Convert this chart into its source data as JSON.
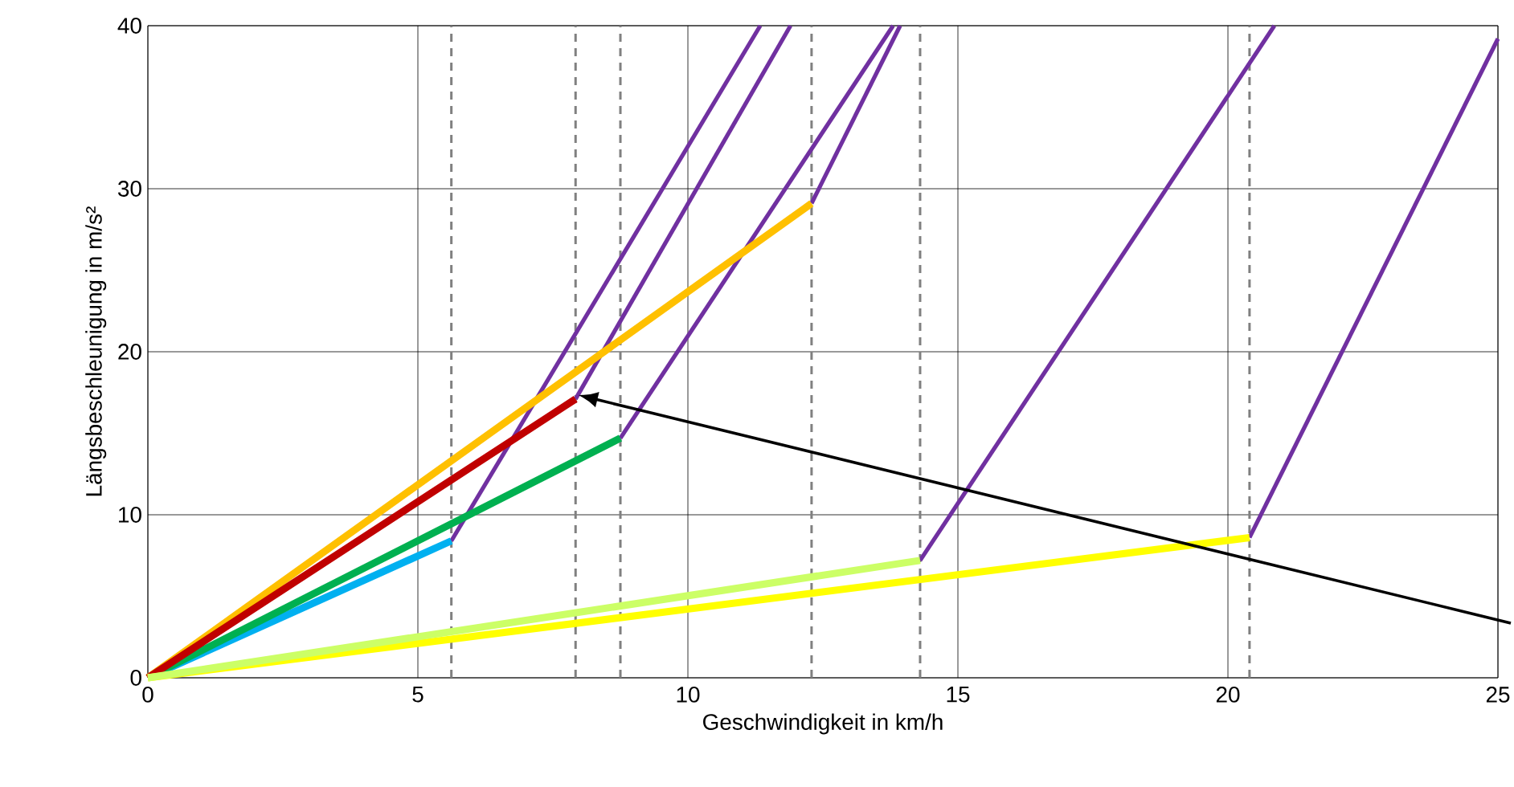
{
  "chart_data": {
    "type": "line",
    "xlabel": "Geschwindigkeit in km/h",
    "ylabel": "Längsbeschleunigung in m/s²",
    "xlim": [
      0,
      25
    ],
    "ylim": [
      0,
      40
    ],
    "xticks": [
      0,
      5,
      10,
      15,
      20,
      25
    ],
    "yticks": [
      0,
      10,
      20,
      30,
      40
    ],
    "grid": true,
    "marker": "none",
    "line_style": "solid",
    "series": [
      {
        "color": "#7030a0",
        "x": [
          5.62,
          11.34
        ],
        "values": [
          8.4,
          40
        ]
      },
      {
        "color": "#7030a0",
        "x": [
          7.92,
          11.9
        ],
        "values": [
          17.1,
          40
        ]
      },
      {
        "color": "#7030a0",
        "x": [
          8.75,
          13.8
        ],
        "values": [
          14.7,
          40
        ]
      },
      {
        "color": "#7030a0",
        "x": [
          12.29,
          13.93
        ],
        "values": [
          29.1,
          40
        ]
      },
      {
        "color": "#7030a0",
        "x": [
          14.3,
          20.86
        ],
        "values": [
          7.2,
          40
        ]
      },
      {
        "color": "#7030a0",
        "x": [
          20.4,
          25
        ],
        "values": [
          8.6,
          39.2
        ]
      },
      {
        "color": "#00b0f0",
        "x": [
          0,
          5.62
        ],
        "values": [
          0,
          8.4
        ]
      },
      {
        "color": "#00b050",
        "x": [
          0,
          8.75
        ],
        "values": [
          0,
          14.7
        ]
      },
      {
        "color": "#ffc000",
        "x": [
          0,
          12.29
        ],
        "values": [
          0,
          29.1
        ]
      },
      {
        "color": "#c00000",
        "x": [
          0,
          7.92
        ],
        "values": [
          0,
          17.1
        ]
      },
      {
        "color": "#ffff00",
        "x": [
          0,
          20.4
        ],
        "values": [
          0,
          8.6
        ]
      },
      {
        "color": "#ccff66",
        "x": [
          0,
          14.3
        ],
        "values": [
          0,
          7.2
        ]
      }
    ],
    "ref_lines": [
      {
        "axis": "x",
        "value": 5.62,
        "color": "#808080",
        "line_style": "dashed"
      },
      {
        "axis": "x",
        "value": 7.92,
        "color": "#808080",
        "line_style": "dashed"
      },
      {
        "axis": "x",
        "value": 8.75,
        "color": "#808080",
        "line_style": "dashed"
      },
      {
        "axis": "x",
        "value": 12.29,
        "color": "#808080",
        "line_style": "dashed"
      },
      {
        "axis": "x",
        "value": 14.3,
        "color": "#808080",
        "line_style": "dashed"
      },
      {
        "axis": "x",
        "value": 20.4,
        "color": "#808080",
        "line_style": "dashed"
      }
    ]
  }
}
